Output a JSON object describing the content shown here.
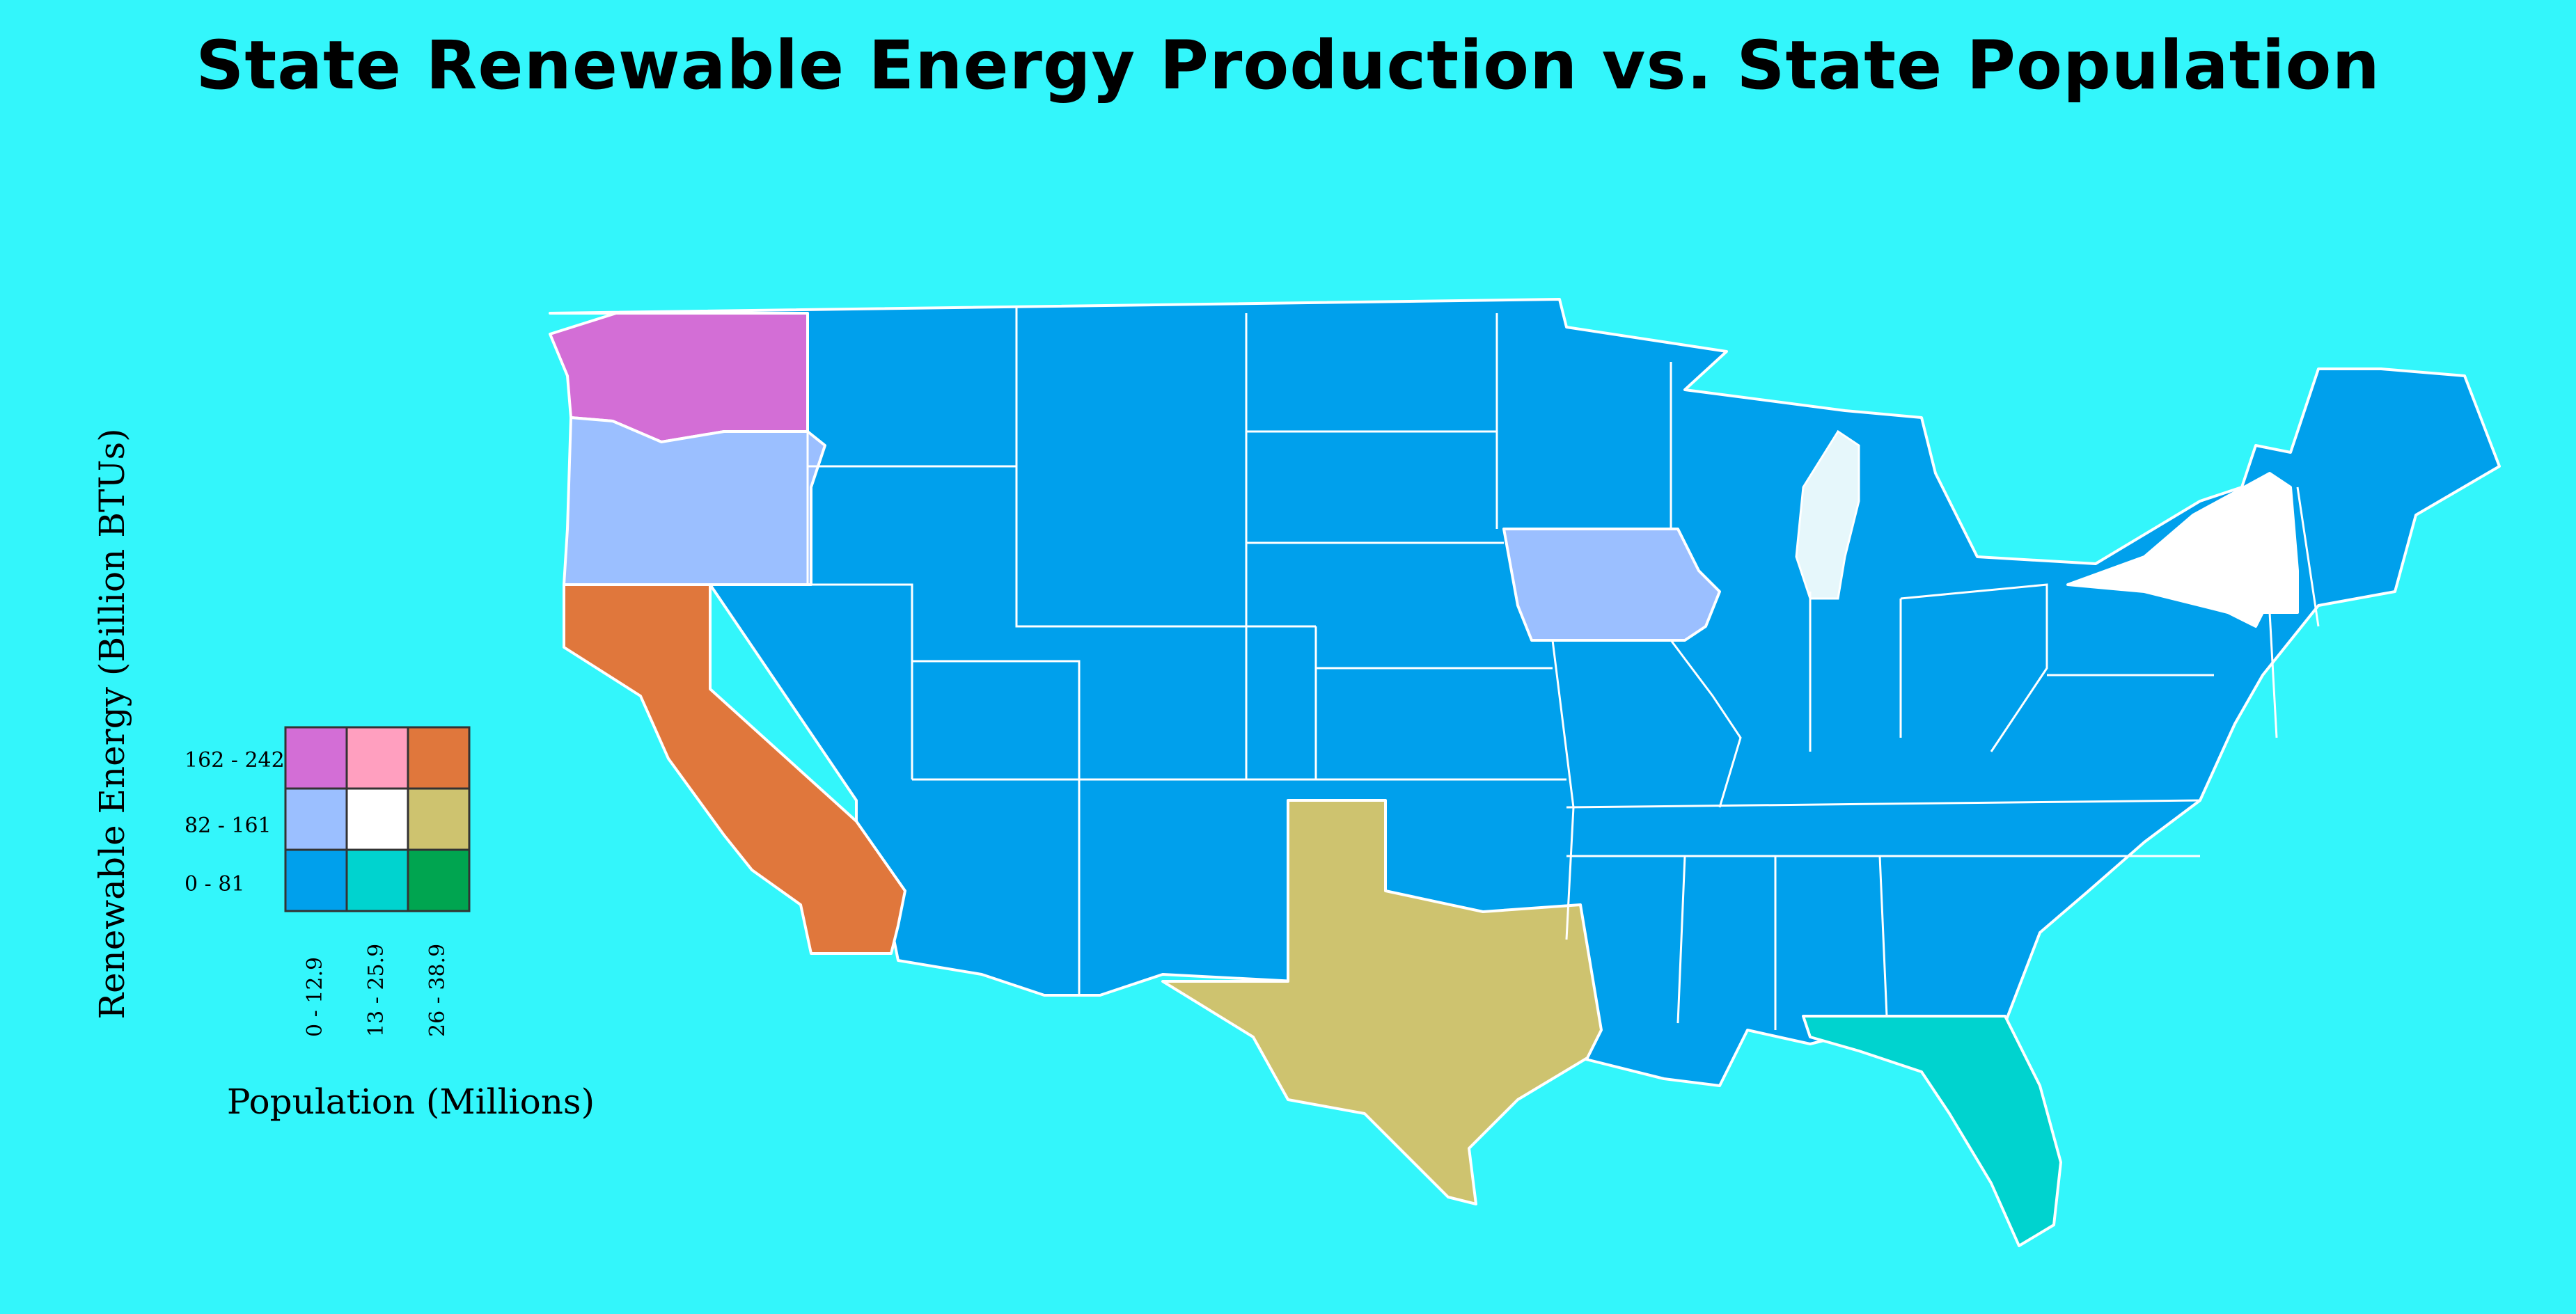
{
  "title": "State Renewable Energy Production vs. State Population",
  "legend": {
    "y_axis_label": "Renewable Energy (Billion BTUs)",
    "x_axis_label": "Population (Millions)",
    "energy_classes": [
      "162 - 242",
      "82 - 161",
      "0 - 81"
    ],
    "population_classes": [
      "0 - 12.9",
      "13 - 25.9",
      "26 - 38.9"
    ],
    "grid_colors": [
      [
        "#d36ed6",
        "#ff9fbf",
        "#e0773c"
      ],
      [
        "#9bbfff",
        "#ffffff",
        "#cec36f"
      ],
      [
        "#00a0ec",
        "#00d3cf",
        "#00a550"
      ]
    ]
  },
  "states": {
    "WA": {
      "energy_class": "162 - 242",
      "population_class": "0 - 12.9",
      "color": "#d36ed6"
    },
    "OR": {
      "energy_class": "82 - 161",
      "population_class": "0 - 12.9",
      "color": "#9bbfff"
    },
    "CA": {
      "energy_class": "162 - 242",
      "population_class": "26 - 38.9",
      "color": "#e0773c"
    },
    "TX": {
      "energy_class": "82 - 161",
      "population_class": "26 - 38.9",
      "color": "#cec36f"
    },
    "IA": {
      "energy_class": "82 - 161",
      "population_class": "0 - 12.9",
      "color": "#9bbfff"
    },
    "NY": {
      "energy_class": "82 - 161",
      "population_class": "13 - 25.9",
      "color": "#ffffff"
    },
    "FL": {
      "energy_class": "0 - 81",
      "population_class": "13 - 25.9",
      "color": "#00d3cf"
    },
    "other": {
      "energy_class": "0 - 81",
      "population_class": "0 - 12.9",
      "color": "#00a0ec"
    }
  }
}
